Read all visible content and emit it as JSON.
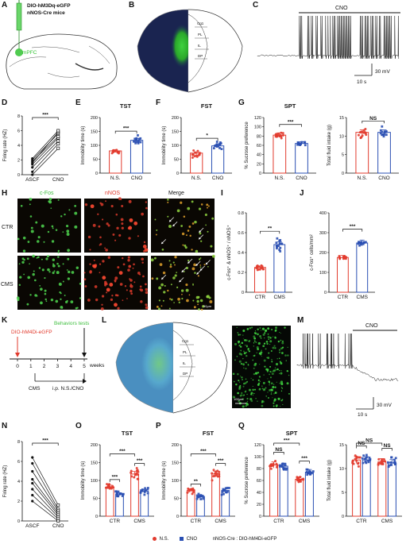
{
  "panel_labels": [
    "A",
    "B",
    "C",
    "D",
    "E",
    "F",
    "G",
    "H",
    "I",
    "J",
    "K",
    "L",
    "M",
    "N",
    "O",
    "P",
    "Q"
  ],
  "colors": {
    "ns": "#e23b2e",
    "cno": "#2a4fb3",
    "green": "#3fbf3f",
    "mpfc": "#31c231"
  },
  "A": {
    "line1": "DIO-hM3Dq-eGFP",
    "line2": "nNOS-Cre mice",
    "region": "mPFC"
  },
  "B": {
    "areas": [
      "Cg1",
      "PL",
      "IL",
      "DP"
    ],
    "scale": "100μm"
  },
  "C": {
    "cno": "CNO",
    "scale_v": "30 mV",
    "scale_t": "10 s"
  },
  "M": {
    "cno": "CNO",
    "scale_v": "30 mV",
    "scale_t": "10 s"
  },
  "L": {
    "areas": [
      "Cg1",
      "PL",
      "IL",
      "DP"
    ],
    "scale1": "100μm",
    "scale2": "100μm"
  },
  "H": {
    "cols": [
      "c-Fos",
      "nNOS",
      "Merge"
    ],
    "rows": [
      "CTR",
      "CMS"
    ],
    "scale": "50μm"
  },
  "K": {
    "virus": "DIO-hM4Di-eGFP",
    "behav": "Behaviors tests",
    "ticks": [
      "0",
      "1",
      "2",
      "3",
      "4",
      "5"
    ],
    "weeks": "weeks",
    "cms": "CMS",
    "ip": "i.p. N.S./CNO"
  },
  "legend": {
    "ns": "N.S.",
    "cno": "CNO",
    "text": "nNOS-Cre : DIO-hM4Di-eGFP"
  },
  "chart_data": [
    {
      "id": "D",
      "type": "line",
      "title": "",
      "ylabel": "Firing rate (HZ)",
      "categories": [
        "ASCF",
        "CNO"
      ],
      "ylim": [
        0,
        8
      ],
      "yticks": [
        0,
        2,
        4,
        6,
        8
      ],
      "sig": "***",
      "series": [
        {
          "values": [
            0.0,
            3.6
          ]
        },
        {
          "values": [
            0.4,
            4.2
          ]
        },
        {
          "values": [
            1.0,
            4.6
          ]
        },
        {
          "values": [
            1.4,
            5.0
          ]
        },
        {
          "values": [
            1.8,
            5.2
          ]
        },
        {
          "values": [
            2.0,
            5.6
          ]
        },
        {
          "values": [
            1.6,
            5.8
          ]
        },
        {
          "values": [
            2.2,
            6.0
          ]
        }
      ]
    },
    {
      "id": "E",
      "type": "bar",
      "title": "TST",
      "ylabel": "Immobility time (s)",
      "categories": [
        "N.S.",
        "CNO"
      ],
      "values": [
        80,
        118
      ],
      "ylim": [
        0,
        200
      ],
      "yticks": [
        0,
        50,
        100,
        150,
        200
      ],
      "sig": "***"
    },
    {
      "id": "F",
      "type": "bar",
      "title": "FST",
      "ylabel": "Immobility time (s)",
      "categories": [
        "N.S.",
        "CNO"
      ],
      "values": [
        72,
        98
      ],
      "ylim": [
        0,
        200
      ],
      "yticks": [
        0,
        50,
        100,
        150,
        200
      ],
      "sig": "*"
    },
    {
      "id": "G1",
      "type": "bar",
      "title": "SPT",
      "ylabel": "% Sucrose preference",
      "categories": [
        "N.S.",
        "CNO"
      ],
      "values": [
        82,
        64
      ],
      "ylim": [
        0,
        120
      ],
      "yticks": [
        0,
        20,
        40,
        60,
        80,
        100,
        120
      ],
      "sig": "***"
    },
    {
      "id": "G2",
      "type": "bar",
      "title": "",
      "ylabel": "Total fluid intake (g)",
      "categories": [
        "N.S.",
        "CNO"
      ],
      "values": [
        11,
        11
      ],
      "ylim": [
        0,
        15
      ],
      "yticks": [
        0,
        5,
        10,
        15
      ],
      "sig": "NS"
    },
    {
      "id": "I",
      "type": "bar",
      "title": "",
      "ylabel": "c-Fos⁺ & nNOS⁺ / nNOS⁺",
      "categories": [
        "CTR",
        "CMS"
      ],
      "values": [
        0.25,
        0.48
      ],
      "ylim": [
        0,
        0.8
      ],
      "yticks": [
        0.0,
        0.2,
        0.4,
        0.6,
        0.8
      ],
      "sig": "**"
    },
    {
      "id": "J",
      "type": "bar",
      "title": "",
      "ylabel": "c-Fos⁺ cells/mm²",
      "categories": [
        "CTR",
        "CMS"
      ],
      "values": [
        175,
        248
      ],
      "ylim": [
        0,
        400
      ],
      "yticks": [
        0,
        100,
        200,
        300,
        400
      ],
      "sig": "***"
    },
    {
      "id": "N",
      "type": "line",
      "title": "",
      "ylabel": "Firing rate (HZ)",
      "categories": [
        "ASCF",
        "CNO"
      ],
      "ylim": [
        0,
        8
      ],
      "yticks": [
        0,
        2,
        4,
        6,
        8
      ],
      "sig": "***",
      "series": [
        {
          "values": [
            6.4,
            1.6
          ]
        },
        {
          "values": [
            5.8,
            1.2
          ]
        },
        {
          "values": [
            5.0,
            1.0
          ]
        },
        {
          "values": [
            4.2,
            0.8
          ]
        },
        {
          "values": [
            3.8,
            0.6
          ]
        },
        {
          "values": [
            3.2,
            0.4
          ]
        },
        {
          "values": [
            2.6,
            0.2
          ]
        },
        {
          "values": [
            2.0,
            0.0
          ]
        }
      ]
    },
    {
      "id": "O",
      "type": "bar",
      "title": "TST",
      "ylabel": "Immobility time (s)",
      "categories": [
        "CTR",
        "CMS"
      ],
      "series": [
        {
          "values": [
            82,
            118
          ]
        },
        {
          "values": [
            62,
            70
          ]
        }
      ],
      "ylim": [
        0,
        200
      ],
      "yticks": [
        0,
        50,
        100,
        150,
        200
      ],
      "sigs": [
        {
          "pair": [
            0,
            1
          ],
          "txt": "***",
          "lvl": 0
        },
        {
          "pair": [
            2,
            3
          ],
          "txt": "***",
          "lvl": 0
        },
        {
          "pair": [
            0,
            2
          ],
          "txt": "***",
          "lvl": 1
        }
      ]
    },
    {
      "id": "P",
      "type": "bar",
      "title": "FST",
      "ylabel": "Immobility time (s)",
      "categories": [
        "CTR",
        "CMS"
      ],
      "series": [
        {
          "values": [
            72,
            118
          ]
        },
        {
          "values": [
            55,
            72
          ]
        }
      ],
      "ylim": [
        0,
        200
      ],
      "yticks": [
        0,
        50,
        100,
        150,
        200
      ],
      "sigs": [
        {
          "pair": [
            0,
            1
          ],
          "txt": "**",
          "lvl": 0
        },
        {
          "pair": [
            2,
            3
          ],
          "txt": "***",
          "lvl": 0
        },
        {
          "pair": [
            0,
            2
          ],
          "txt": "***",
          "lvl": 1
        }
      ]
    },
    {
      "id": "Q1",
      "type": "bar",
      "title": "SPT",
      "ylabel": "% Sucrose preference",
      "categories": [
        "CTR",
        "CMS"
      ],
      "series": [
        {
          "values": [
            86,
            62
          ]
        },
        {
          "values": [
            84,
            74
          ]
        }
      ],
      "ylim": [
        0,
        120
      ],
      "yticks": [
        0,
        20,
        40,
        60,
        80,
        100,
        120
      ],
      "sigs": [
        {
          "pair": [
            0,
            1
          ],
          "txt": "NS",
          "lvl": 0
        },
        {
          "pair": [
            2,
            3
          ],
          "txt": "***",
          "lvl": 0
        },
        {
          "pair": [
            0,
            2
          ],
          "txt": "***",
          "lvl": 1
        }
      ]
    },
    {
      "id": "Q2",
      "type": "bar",
      "title": "",
      "ylabel": "Total fluid intake (g)",
      "categories": [
        "CTR",
        "CMS"
      ],
      "series": [
        {
          "values": [
            11.8,
            11.4
          ]
        },
        {
          "values": [
            11.8,
            11.2
          ]
        }
      ],
      "ylim": [
        0,
        15
      ],
      "yticks": [
        0,
        5,
        10,
        15
      ],
      "sigs": [
        {
          "pair": [
            0,
            1
          ],
          "txt": "NS",
          "lvl": 0
        },
        {
          "pair": [
            2,
            3
          ],
          "txt": "NS",
          "lvl": 0
        },
        {
          "pair": [
            0,
            2
          ],
          "txt": "NS",
          "lvl": 1
        }
      ]
    }
  ]
}
